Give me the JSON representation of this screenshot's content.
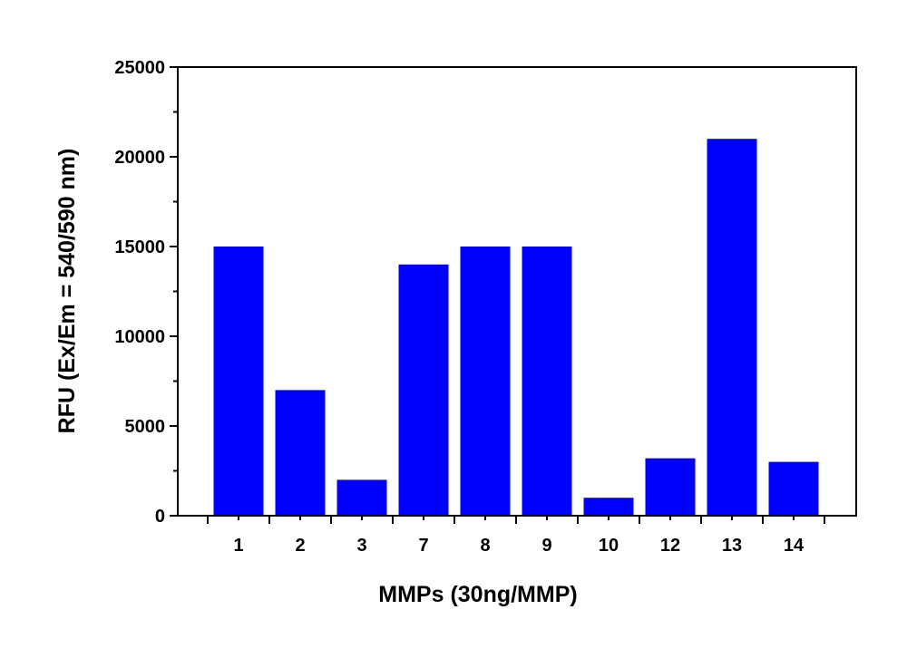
{
  "chart_data": {
    "type": "bar",
    "categories": [
      "1",
      "2",
      "3",
      "7",
      "8",
      "9",
      "10",
      "12",
      "13",
      "14"
    ],
    "values": [
      15000,
      7000,
      2000,
      14000,
      15000,
      15000,
      1000,
      3200,
      21000,
      3000
    ],
    "title": "",
    "xlabel": "MMPs (30ng/MMP)",
    "ylabel": "RFU (Ex/Em = 540/590 nm)",
    "ylim": [
      0,
      25000
    ],
    "yticks": [
      0,
      5000,
      10000,
      15000,
      20000,
      25000
    ],
    "bar_color": "#0000ff",
    "grid": false,
    "legend": "none"
  }
}
